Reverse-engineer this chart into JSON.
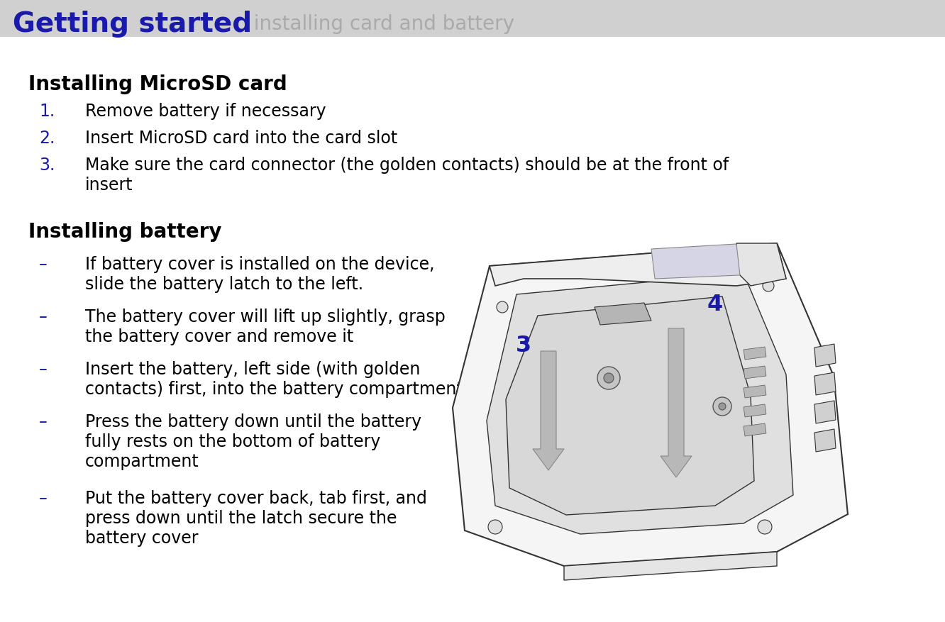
{
  "title_blue": "Getting started",
  "title_gray": "  installing card and battery",
  "header_bg_color": "#d0d0d0",
  "blue_color": "#1a1aaa",
  "black": "#000000",
  "white": "#ffffff",
  "bg_color": "#ffffff",
  "section1_title": "Installing MicroSD card",
  "section1_items": [
    {
      "num": "1.",
      "text": "Remove battery if necessary"
    },
    {
      "num": "2.",
      "text": "Insert MicroSD card into the card slot"
    },
    {
      "num": "3.",
      "text": "Make sure the card connector (the golden contacts) should be at the front of\ninsert"
    }
  ],
  "section2_title": "Installing battery",
  "section2_items": [
    {
      "bullet": "–",
      "text": "If battery cover is installed on the device,\nslide the battery latch to the left."
    },
    {
      "bullet": "–",
      "text": "The battery cover will lift up slightly, grasp\nthe battery cover and remove it"
    },
    {
      "bullet": "–",
      "text": "Insert the battery, left side (with golden\ncontacts) first, into the battery compartment"
    },
    {
      "bullet": "–",
      "text": "Press the battery down until the battery\nfully rests on the bottom of battery\ncompartment"
    },
    {
      "bullet": "–",
      "text": "Put the battery cover back, tab first, and\npress down until the latch secure the\nbattery cover"
    }
  ]
}
